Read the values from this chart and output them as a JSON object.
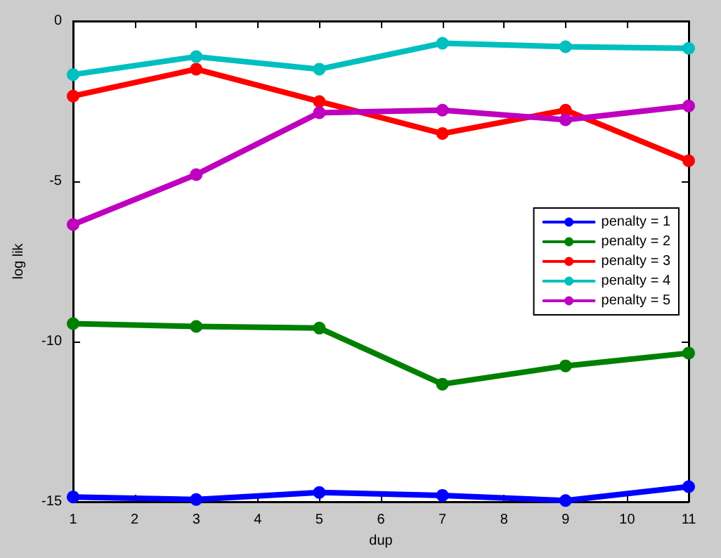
{
  "chart_data": {
    "type": "line",
    "xlabel": "dup",
    "ylabel": "log lik",
    "x": [
      1,
      3,
      5,
      7,
      9,
      11
    ],
    "xlim": [
      1,
      11
    ],
    "xticks": [
      1,
      2,
      3,
      4,
      5,
      6,
      7,
      8,
      9,
      10,
      11
    ],
    "ylim": [
      -15,
      0
    ],
    "yticks": [
      -15,
      -10,
      -5,
      0
    ],
    "grid": false,
    "legend": "right",
    "marker": "circle",
    "line_style": "solid",
    "series": [
      {
        "name": "penalty = 1",
        "color": "#0000ff",
        "values": [
          -14.85,
          -14.93,
          -14.71,
          -14.8,
          -14.96,
          -14.53
        ]
      },
      {
        "name": "penalty = 2",
        "color": "#008000",
        "values": [
          -9.44,
          -9.53,
          -9.58,
          -11.33,
          -10.76,
          -10.36
        ]
      },
      {
        "name": "penalty = 3",
        "color": "#ff0000",
        "values": [
          -2.34,
          -1.5,
          -2.51,
          -3.51,
          -2.78,
          -4.36
        ]
      },
      {
        "name": "penalty = 4",
        "color": "#00bfbf",
        "values": [
          -1.67,
          -1.11,
          -1.5,
          -0.69,
          -0.8,
          -0.85
        ]
      },
      {
        "name": "penalty = 5",
        "color": "#bf00bf",
        "values": [
          -6.35,
          -4.79,
          -2.86,
          -2.78,
          -3.08,
          -2.65
        ]
      }
    ]
  }
}
